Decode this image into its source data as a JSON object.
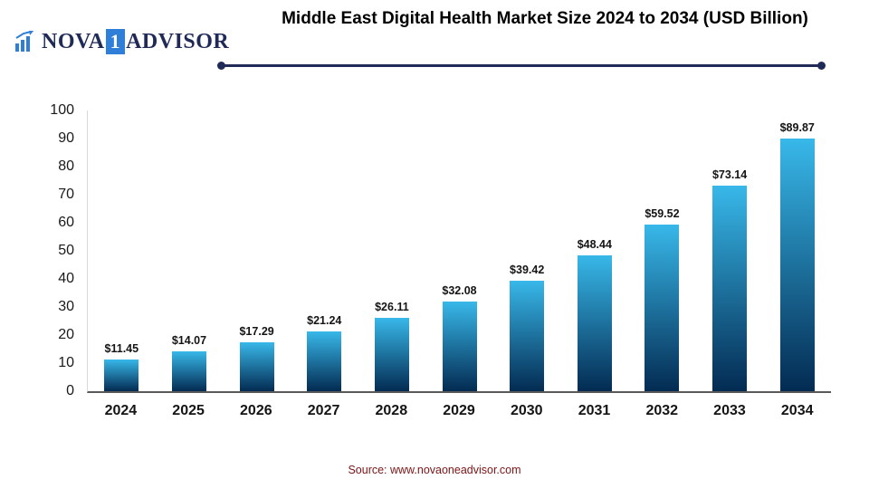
{
  "logo": {
    "name_left": "NOVA",
    "badge": "1",
    "name_right": "ADVISOR"
  },
  "title": "Middle East Digital Health Market Size 2024 to 2034 (USD Billion)",
  "source": "Source: www.novaoneadvisor.com",
  "chart_data": {
    "type": "bar",
    "title": "Middle East Digital Health Market Size 2024 to 2034 (USD Billion)",
    "categories": [
      "2024",
      "2025",
      "2026",
      "2027",
      "2028",
      "2029",
      "2030",
      "2031",
      "2032",
      "2033",
      "2034"
    ],
    "values": [
      11.45,
      14.07,
      17.29,
      21.24,
      26.11,
      32.08,
      39.42,
      48.44,
      59.52,
      73.14,
      89.87
    ],
    "value_labels": [
      "$11.45",
      "$14.07",
      "$17.29",
      "$21.24",
      "$26.11",
      "$32.08",
      "$39.42",
      "$48.44",
      "$59.52",
      "$73.14",
      "$89.87"
    ],
    "xlabel": "",
    "ylabel": "",
    "ylim": [
      0,
      100
    ],
    "yticks": [
      0,
      10,
      20,
      30,
      40,
      50,
      60,
      70,
      80,
      90,
      100
    ],
    "grid": "off",
    "legend": "none",
    "bar_gradient_top": "#38b8e9",
    "bar_gradient_bottom": "#032b52",
    "accent_navy": "#1f2a56",
    "source_color": "#7b1416"
  }
}
